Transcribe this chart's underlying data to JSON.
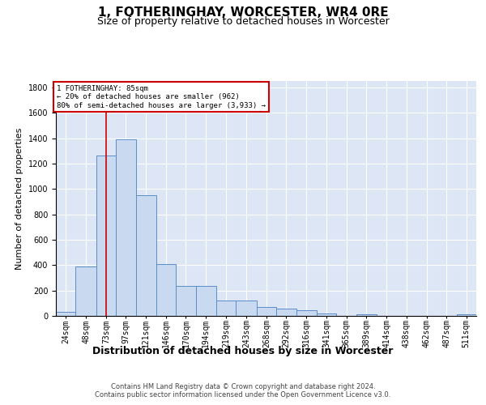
{
  "title": "1, FOTHERINGHAY, WORCESTER, WR4 0RE",
  "subtitle": "Size of property relative to detached houses in Worcester",
  "xlabel": "Distribution of detached houses by size in Worcester",
  "ylabel": "Number of detached properties",
  "bin_labels": [
    "24sqm",
    "48sqm",
    "73sqm",
    "97sqm",
    "121sqm",
    "146sqm",
    "170sqm",
    "194sqm",
    "219sqm",
    "243sqm",
    "268sqm",
    "292sqm",
    "316sqm",
    "341sqm",
    "365sqm",
    "389sqm",
    "414sqm",
    "438sqm",
    "462sqm",
    "487sqm",
    "511sqm"
  ],
  "bin_edges": [
    24,
    48,
    73,
    97,
    121,
    146,
    170,
    194,
    219,
    243,
    268,
    292,
    316,
    341,
    365,
    389,
    414,
    438,
    462,
    487,
    511
  ],
  "bar_heights": [
    30,
    390,
    1260,
    1390,
    950,
    410,
    235,
    235,
    120,
    120,
    70,
    60,
    45,
    20,
    0,
    15,
    0,
    0,
    0,
    0,
    15
  ],
  "bar_color": "#c9d9ef",
  "bar_edge_color": "#5b8dc8",
  "property_line_x": 85,
  "property_line_color": "#cc0000",
  "annotation_line1": "1 FOTHERINGHAY: 85sqm",
  "annotation_line2": "← 20% of detached houses are smaller (962)",
  "annotation_line3": "80% of semi-detached houses are larger (3,933) →",
  "annotation_box_color": "#ffffff",
  "annotation_box_edge": "#cc0000",
  "ylim": [
    0,
    1850
  ],
  "yticks": [
    0,
    200,
    400,
    600,
    800,
    1000,
    1200,
    1400,
    1600,
    1800
  ],
  "grid_color": "#ffffff",
  "background_color": "#dce6f5",
  "footer_text": "Contains HM Land Registry data © Crown copyright and database right 2024.\nContains public sector information licensed under the Open Government Licence v3.0.",
  "title_fontsize": 11,
  "subtitle_fontsize": 9,
  "ylabel_fontsize": 8,
  "xlabel_fontsize": 9,
  "tick_fontsize": 7,
  "footer_fontsize": 6
}
